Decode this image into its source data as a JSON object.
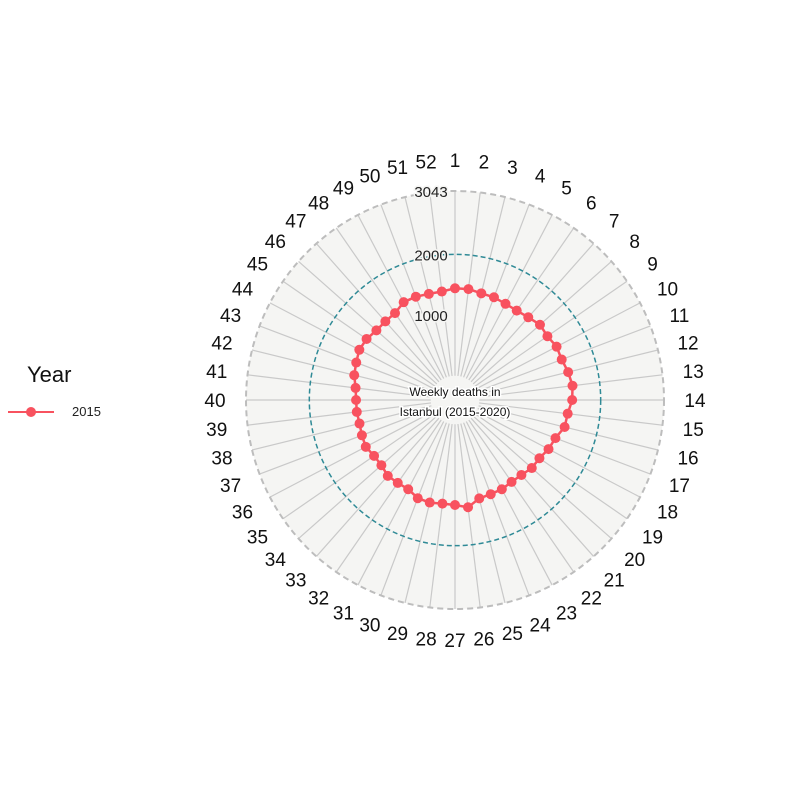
{
  "chart_data": {
    "type": "line",
    "coordinate_system": "polar",
    "title": "Weekly deaths in Istanbul (2015-2020)",
    "title_lines": [
      "Weekly deaths in",
      "Istanbul (2015-2020)"
    ],
    "x": [
      1,
      2,
      3,
      4,
      5,
      6,
      7,
      8,
      9,
      10,
      11,
      12,
      13,
      14,
      15,
      16,
      17,
      18,
      19,
      20,
      21,
      22,
      23,
      24,
      25,
      26,
      27,
      28,
      29,
      30,
      31,
      32,
      33,
      34,
      35,
      36,
      37,
      38,
      39,
      40,
      41,
      42,
      43,
      44,
      45,
      46,
      47,
      48,
      49,
      50,
      51,
      52
    ],
    "x_tick_labels": [
      "1",
      "2",
      "3",
      "4",
      "5",
      "6",
      "7",
      "8",
      "9",
      "10",
      "11",
      "12",
      "13",
      "14",
      "15",
      "16",
      "17",
      "18",
      "19",
      "20",
      "21",
      "22",
      "23",
      "24",
      "25",
      "26",
      "27",
      "28",
      "29",
      "30",
      "31",
      "32",
      "33",
      "34",
      "35",
      "36",
      "37",
      "38",
      "39",
      "40",
      "41",
      "42",
      "43",
      "44",
      "45",
      "46",
      "47",
      "48",
      "49",
      "50",
      "51",
      "52"
    ],
    "series": [
      {
        "name": "2015",
        "color": "#f8525f",
        "values": [
          1440,
          1440,
          1410,
          1410,
          1390,
          1390,
          1420,
          1470,
          1450,
          1490,
          1480,
          1520,
          1550,
          1530,
          1470,
          1460,
          1370,
          1340,
          1290,
          1290,
          1250,
          1240,
          1260,
          1260,
          1270,
          1380,
          1330,
          1320,
          1340,
          1330,
          1260,
          1260,
          1270,
          1220,
          1220,
          1260,
          1240,
          1220,
          1230,
          1230,
          1250,
          1310,
          1340,
          1380,
          1370,
          1330,
          1330,
          1340,
          1420,
          1420,
          1400,
          1400
        ]
      }
    ],
    "radial_axis": {
      "range": [
        0,
        3043
      ],
      "inner_offset": 400,
      "ticks": [
        1000,
        2000,
        3043
      ],
      "tick_labels": [
        "1000",
        "2000",
        "3043"
      ],
      "highlight_gridline": 2000,
      "highlight_color": "#2f8a96"
    },
    "legend": {
      "title": "Year",
      "position": "left"
    },
    "panel_background": "#f5f5f3",
    "grid": true
  }
}
